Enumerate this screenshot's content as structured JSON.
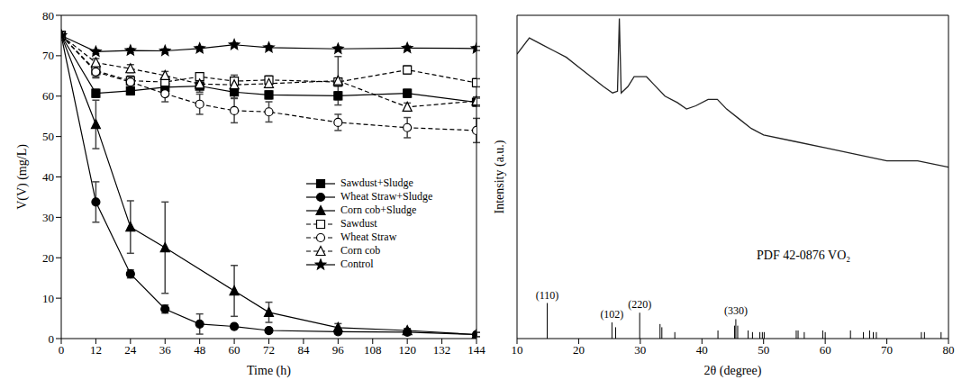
{
  "chart_data": [
    {
      "type": "line",
      "x_label": "Time (h)",
      "y_label": "V(V) (mg/L)",
      "xlim": [
        0,
        144
      ],
      "xticks": [
        0,
        12,
        24,
        36,
        48,
        60,
        72,
        84,
        96,
        108,
        120,
        132,
        144
      ],
      "ylim": [
        0,
        80
      ],
      "yticks": [
        0,
        10,
        20,
        30,
        40,
        50,
        60,
        70,
        80
      ],
      "legend": "right",
      "series": [
        {
          "name": "Sawdust+Sludge",
          "color": "#000000",
          "marker": "square",
          "line_style": "solid",
          "x": [
            0,
            12,
            24,
            36,
            48,
            60,
            72,
            96,
            120,
            144
          ],
          "values": [
            75,
            60.7,
            61.3,
            62.2,
            62.5,
            61,
            60.3,
            60.1,
            60.7,
            58.5
          ],
          "errors": [
            0,
            1,
            1,
            1,
            1.5,
            1.5,
            1,
            1,
            1,
            1
          ]
        },
        {
          "name": "Wheat Straw+Sludge",
          "color": "#000000",
          "marker": "circle",
          "line_style": "solid",
          "x": [
            0,
            12,
            24,
            36,
            48,
            60,
            72,
            96,
            120,
            144
          ],
          "values": [
            75,
            33.8,
            16,
            7.3,
            3.6,
            3,
            2,
            1.7,
            1.6,
            1
          ],
          "errors": [
            0,
            5,
            1,
            1,
            2.5,
            0.5,
            0.5,
            0.5,
            0.5,
            0.5
          ]
        },
        {
          "name": "Corn cob+Sludge",
          "color": "#000000",
          "marker": "triangle",
          "line_style": "solid",
          "x": [
            0,
            12,
            24,
            36,
            60,
            72,
            96,
            120,
            144
          ],
          "values": [
            75,
            53,
            27.6,
            22.5,
            11.8,
            6.5,
            2.7,
            2,
            1
          ],
          "errors": [
            0,
            6,
            6.5,
            11.3,
            6.3,
            2.5,
            1,
            0.5,
            0.5
          ]
        },
        {
          "name": "Sawdust",
          "color": "#000000",
          "marker": "open square",
          "line_style": "dashed",
          "x": [
            0,
            12,
            24,
            36,
            48,
            60,
            72,
            96,
            120,
            144
          ],
          "values": [
            75,
            66.3,
            63.8,
            63.5,
            64.8,
            63.7,
            64,
            63.5,
            66.5,
            63.3
          ],
          "errors": [
            0,
            1.5,
            1,
            1,
            1,
            1.5,
            1,
            1,
            1,
            1
          ]
        },
        {
          "name": "Wheat Straw",
          "color": "#000000",
          "marker": "open circle",
          "line_style": "dashed",
          "x": [
            0,
            12,
            24,
            36,
            48,
            60,
            72,
            96,
            120,
            144
          ],
          "values": [
            75,
            66,
            63.5,
            60.6,
            58,
            56.4,
            56.1,
            53.5,
            52.2,
            51.5
          ],
          "errors": [
            0,
            1.5,
            1.5,
            2,
            2.5,
            3,
            2.5,
            2,
            2.5,
            3
          ]
        },
        {
          "name": "Corn cob",
          "color": "#000000",
          "marker": "open triangle",
          "line_style": "dashed",
          "x": [
            0,
            12,
            24,
            36,
            48,
            60,
            72,
            96,
            120,
            144
          ],
          "values": [
            75,
            68.3,
            66.8,
            65.1,
            63,
            62.8,
            63.1,
            63.8,
            57.3,
            58.8
          ],
          "errors": [
            0,
            1,
            1,
            1,
            1,
            1,
            1,
            6,
            1,
            1
          ]
        },
        {
          "name": "Control",
          "color": "#000000",
          "marker": "star",
          "line_style": "solid",
          "x": [
            0,
            12,
            24,
            36,
            48,
            60,
            72,
            96,
            120,
            144
          ],
          "values": [
            75,
            71,
            71.3,
            71.2,
            71.8,
            72.7,
            72,
            71.7,
            71.9,
            71.8
          ],
          "errors": [
            0,
            0.5,
            0.5,
            0.5,
            0.5,
            0.5,
            0.5,
            0.5,
            0.5,
            0.5
          ]
        }
      ]
    },
    {
      "type": "line",
      "x_label": "2θ (degree)",
      "y_label": "Intensity (a.u.)",
      "xlim": [
        10,
        80
      ],
      "xticks": [
        10,
        20,
        30,
        40,
        50,
        60,
        70,
        80
      ],
      "ylim": [
        0,
        100
      ],
      "tick_labels": "x",
      "color": "#222222",
      "x": [
        10,
        12,
        14,
        16,
        18,
        20,
        22,
        24,
        25.5,
        26.3,
        26.6,
        26.9,
        28,
        29,
        30,
        31,
        32,
        34,
        36,
        37.5,
        39,
        41,
        42.5,
        44,
        46,
        48,
        50,
        55,
        60,
        65,
        70,
        75,
        80
      ],
      "values": [
        88,
        93,
        91,
        89,
        87,
        84,
        81,
        78,
        76,
        76.5,
        99,
        76,
        78,
        81,
        81,
        81,
        79,
        75,
        73,
        71,
        72,
        74,
        74,
        71,
        68,
        65,
        63,
        61,
        59,
        57,
        55,
        55,
        53
      ],
      "reference": {
        "label": "PDF 42-0876 VO₂",
        "sticks": {
          "x": [
            14.9,
            25.4,
            26.0,
            29.9,
            33.2,
            33.5,
            35.6,
            42.6,
            45.3,
            45.5,
            45.8,
            47.5,
            48.2,
            49.4,
            49.8,
            50.1,
            55.3,
            55.6,
            56.6,
            59.6,
            60.0,
            64.1,
            66.2,
            67.2,
            67.8,
            68.3,
            75.6,
            76.1,
            78.8
          ],
          "heights": [
            11,
            5,
            3.5,
            8,
            4.5,
            3.5,
            2,
            2.5,
            4,
            6,
            4,
            2.5,
            2,
            2,
            2,
            2,
            2.5,
            2.5,
            2,
            2.5,
            2,
            2.5,
            2,
            2.5,
            2,
            2,
            2,
            2,
            2
          ]
        },
        "annotations": [
          {
            "x": 14.9,
            "label": "(110)"
          },
          {
            "x": 25.4,
            "label": "(102)"
          },
          {
            "x": 29.9,
            "label": "(220)"
          },
          {
            "x": 45.5,
            "label": "(330)"
          }
        ]
      }
    }
  ]
}
